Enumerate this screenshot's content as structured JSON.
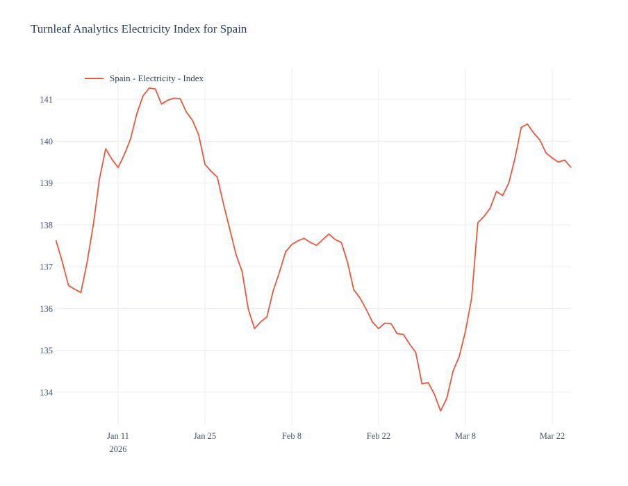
{
  "page_title": "Turnleaf Analytics Electricity Index for Spain",
  "legend": {
    "label": "Spain - Electricity - Index"
  },
  "colors": {
    "title": "#2a3f5f",
    "tick_label": "#42526e",
    "gridline": "#e8ecf3",
    "line": "#ef553b",
    "background": "#ffffff"
  },
  "chart_data": {
    "type": "line",
    "title": "Turnleaf Analytics Electricity Index for Spain",
    "xlabel": "",
    "ylabel": "",
    "grid": true,
    "legend_position": "top-left-inside",
    "x_start_date": "2026-01-01",
    "x_frequency": "daily",
    "xlim_day_index": [
      0,
      83
    ],
    "ylim": [
      133.2,
      141.75
    ],
    "y_ticks": [
      134,
      135,
      136,
      137,
      138,
      139,
      140,
      141
    ],
    "x_ticks": [
      {
        "day_index": 10,
        "label": "Jan 11",
        "sublabel": "2026"
      },
      {
        "day_index": 24,
        "label": "Jan 25",
        "sublabel": ""
      },
      {
        "day_index": 38,
        "label": "Feb 8",
        "sublabel": ""
      },
      {
        "day_index": 52,
        "label": "Feb 22",
        "sublabel": ""
      },
      {
        "day_index": 66,
        "label": "Mar 8",
        "sublabel": ""
      },
      {
        "day_index": 80,
        "label": "Mar 22",
        "sublabel": ""
      }
    ],
    "series": [
      {
        "name": "Spain - Electricity - Index",
        "color": "#ef553b",
        "start_date": "2026-01-01",
        "values": [
          137.62,
          137.12,
          136.55,
          136.46,
          136.38,
          137.1,
          138.0,
          139.1,
          139.82,
          139.57,
          139.37,
          139.68,
          140.05,
          140.65,
          141.08,
          141.27,
          141.25,
          140.89,
          140.98,
          141.03,
          141.02,
          140.7,
          140.5,
          140.15,
          139.45,
          139.28,
          139.14,
          138.5,
          137.9,
          137.3,
          136.88,
          135.98,
          135.52,
          135.68,
          135.8,
          136.42,
          136.86,
          137.35,
          137.53,
          137.62,
          137.68,
          137.58,
          137.51,
          137.65,
          137.78,
          137.65,
          137.58,
          137.1,
          136.45,
          136.25,
          135.98,
          135.68,
          135.52,
          135.65,
          135.64,
          135.4,
          135.38,
          135.15,
          134.95,
          134.2,
          134.23,
          133.95,
          133.55,
          133.85,
          134.5,
          134.85,
          135.45,
          136.25,
          138.05,
          138.2,
          138.4,
          138.8,
          138.7,
          139.0,
          139.6,
          140.33,
          140.41,
          140.2,
          140.03,
          139.72,
          139.6,
          139.5,
          139.55,
          139.38
        ]
      }
    ]
  }
}
